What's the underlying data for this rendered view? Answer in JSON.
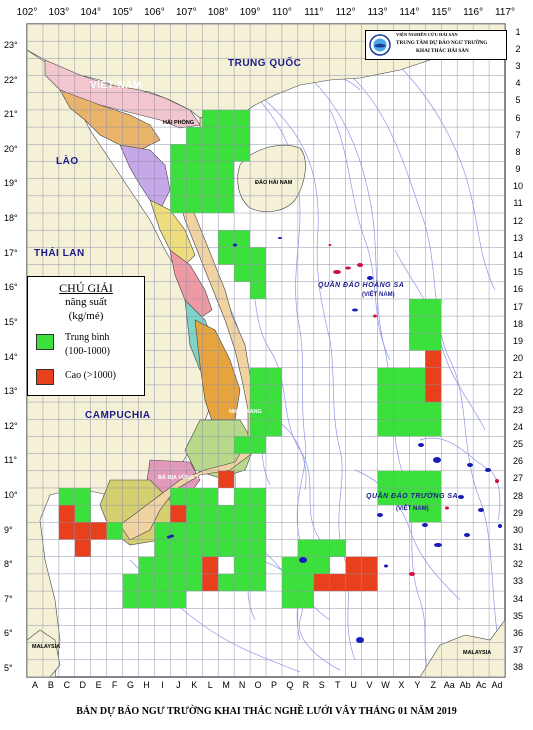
{
  "map": {
    "title": "BẢN DỰ BÁO NGƯ TRƯỜNG KHAI THÁC NGHỀ LƯỚI VÂY THÁNG 01 NĂM 2019",
    "longitudes": [
      "102°",
      "103°",
      "104°",
      "105°",
      "106°",
      "107°",
      "108°",
      "109°",
      "110°",
      "111°",
      "112°",
      "113°",
      "114°",
      "115°",
      "116°",
      "117°"
    ],
    "latitudes": [
      "23°",
      "22°",
      "21°",
      "20°",
      "19°",
      "18°",
      "17°",
      "16°",
      "15°",
      "14°",
      "13°",
      "12°",
      "11°",
      "10°",
      "9°",
      "8°",
      "7°",
      "6°",
      "5°"
    ],
    "grid_rows": [
      "1",
      "2",
      "3",
      "4",
      "5",
      "6",
      "7",
      "8",
      "9",
      "10",
      "11",
      "12",
      "13",
      "14",
      "15",
      "16",
      "17",
      "18",
      "19",
      "20",
      "21",
      "22",
      "23",
      "24",
      "25",
      "26",
      "27",
      "28",
      "29",
      "30",
      "31",
      "32",
      "33",
      "34",
      "35",
      "36",
      "37",
      "38"
    ],
    "grid_columns": [
      "A",
      "B",
      "C",
      "D",
      "E",
      "F",
      "G",
      "H",
      "I",
      "J",
      "K",
      "L",
      "M",
      "N",
      "O",
      "P",
      "Q",
      "R",
      "S",
      "T",
      "U",
      "V",
      "W",
      "X",
      "Y",
      "Z",
      "Aa",
      "Ab",
      "Ac",
      "Ad"
    ],
    "place_labels": {
      "china": "TRUNG QUỐC",
      "vietnam": "VIỆT NAM",
      "laos": "LÀO",
      "thailand": "THÁI LAN",
      "cambodia": "CAMPUCHIA",
      "hai_phong": "HẢI PHÒNG",
      "hainan": "ĐẢO HẢI NAM",
      "hoang_sa": "QUẦN ĐẢO HOÀNG SA",
      "hoang_sa_vn": "(VIỆT NAM)",
      "truong_sa": "QUẦN ĐẢO TRƯỜNG SA",
      "truong_sa_vn": "(VIỆT NAM)",
      "nha_trang": "NHA TRANG",
      "ba_ria_vung_tau": "BÀ RỊA VŨNG TÀU",
      "malaysia_west": "MALAYSIA",
      "malaysia_east": "MALAYSIA"
    },
    "legend": {
      "title": "CHÚ GIẢI",
      "subtitle": "năng suất",
      "unit": "(kg/mẻ)",
      "items": [
        {
          "label": "Trung bình",
          "range": "(100-1000)",
          "color": "#3ce03c"
        },
        {
          "label": "Cao (>1000)",
          "range": "",
          "color": "#e8401c"
        }
      ]
    },
    "institute": {
      "line1": "VIỆN NGHIÊN CỨU HẢI SẢN",
      "line2": "TRUNG TÂM DỰ BÁO NGƯ TRƯỜNG",
      "line3": "KHAI THÁC HẢI SẢN"
    },
    "colors": {
      "medium": "#3ce03c",
      "high": "#e8401c",
      "land": "#f5f1d6",
      "sea": "#ffffff",
      "grid": "#8a8aa6",
      "contour": "#8d97e8",
      "islands": "#1a1ab8",
      "island_red": "#cc1144"
    },
    "fishing_cells": {
      "medium": [
        "L6",
        "M6",
        "N6",
        "K7",
        "L7",
        "M7",
        "N7",
        "J8",
        "K8",
        "L8",
        "M8",
        "N8",
        "J9",
        "K9",
        "L9",
        "M9",
        "J10",
        "K10",
        "L10",
        "M10",
        "J11",
        "K11",
        "L11",
        "M11",
        "M13",
        "N13",
        "M14",
        "N14",
        "O14",
        "N15",
        "O15",
        "O16",
        "Y17",
        "Z17",
        "Y18",
        "Z18",
        "Y19",
        "Z19",
        "O21",
        "P21",
        "W21",
        "X21",
        "Y21",
        "O22",
        "P22",
        "W22",
        "X22",
        "Y22",
        "Z22",
        "O23",
        "P23",
        "W23",
        "X23",
        "Y23",
        "Z23",
        "O24",
        "P24",
        "W24",
        "X24",
        "Y24",
        "Z24",
        "N25",
        "O25",
        "W27",
        "X27",
        "Y27",
        "Z27",
        "C28",
        "D28",
        "J28",
        "K28",
        "L28",
        "N28",
        "O28",
        "W28",
        "X28",
        "Y28",
        "Z28",
        "C29",
        "D29",
        "J29",
        "K29",
        "L29",
        "M29",
        "N29",
        "O29",
        "Y29",
        "Z29",
        "F30",
        "I30",
        "J30",
        "K30",
        "L30",
        "M30",
        "N30",
        "O30",
        "I31",
        "J31",
        "K31",
        "L31",
        "M31",
        "N31",
        "O31",
        "R31",
        "S31",
        "T31",
        "H32",
        "I32",
        "J32",
        "K32",
        "L32",
        "N32",
        "O32",
        "Q32",
        "R32",
        "S32",
        "G33",
        "H33",
        "I33",
        "J33",
        "K33",
        "M33",
        "N33",
        "O33",
        "Q33",
        "R33",
        "S33",
        "T33",
        "G34",
        "H34",
        "I34",
        "J34",
        "Q34",
        "R34"
      ],
      "high": [
        "Z20",
        "Z21",
        "Z22",
        "M27",
        "C29",
        "C30",
        "D30",
        "E30",
        "D31",
        "J29",
        "L32",
        "L33",
        "U32",
        "V32",
        "S33",
        "T33",
        "U33",
        "V33"
      ]
    }
  }
}
